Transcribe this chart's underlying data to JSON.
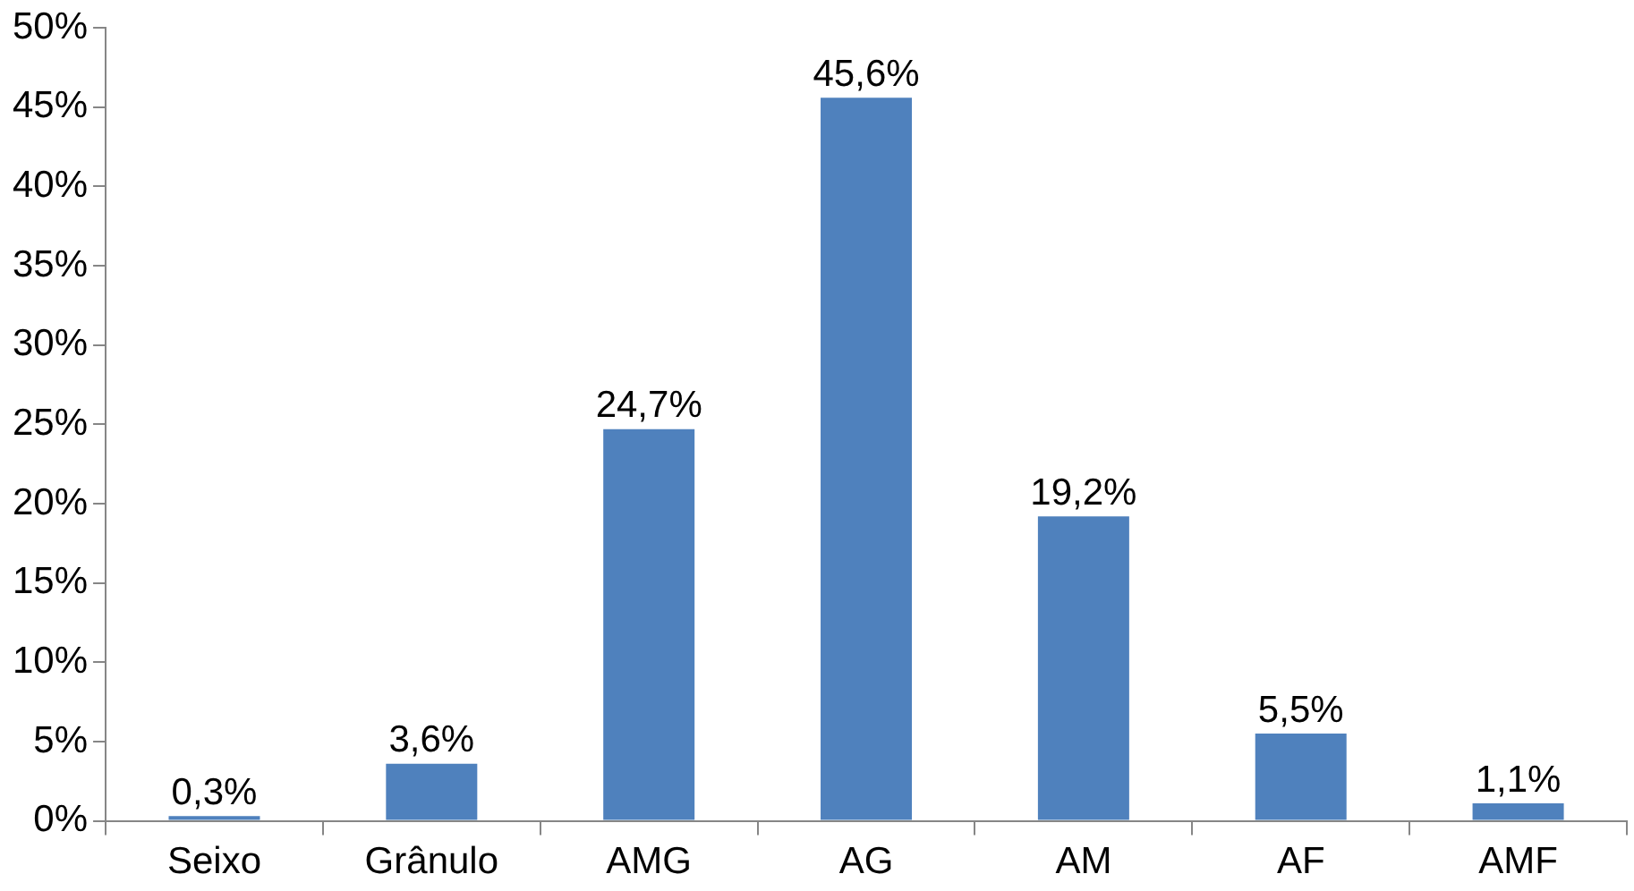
{
  "chart_data": {
    "type": "bar",
    "categories": [
      "Seixo",
      "Grânulo",
      "AMG",
      "AG",
      "AM",
      "AF",
      "AMF"
    ],
    "values": [
      0.3,
      3.6,
      24.7,
      45.6,
      19.2,
      5.5,
      1.1
    ],
    "value_labels": [
      "0,3%",
      "3,6%",
      "24,7%",
      "45,6%",
      "19,2%",
      "5,5%",
      "1,1%"
    ],
    "color": "#4f81bd",
    "ylim": [
      0,
      50
    ],
    "yticks": [
      {
        "value": 0,
        "label": "0%"
      },
      {
        "value": 5,
        "label": "5%"
      },
      {
        "value": 10,
        "label": "10%"
      },
      {
        "value": 15,
        "label": "15%"
      },
      {
        "value": 20,
        "label": "20%"
      },
      {
        "value": 25,
        "label": "25%"
      },
      {
        "value": 30,
        "label": "30%"
      },
      {
        "value": 35,
        "label": "35%"
      },
      {
        "value": 40,
        "label": "40%"
      },
      {
        "value": 45,
        "label": "45%"
      },
      {
        "value": 50,
        "label": "50%"
      }
    ],
    "grid": false,
    "legend": false
  }
}
